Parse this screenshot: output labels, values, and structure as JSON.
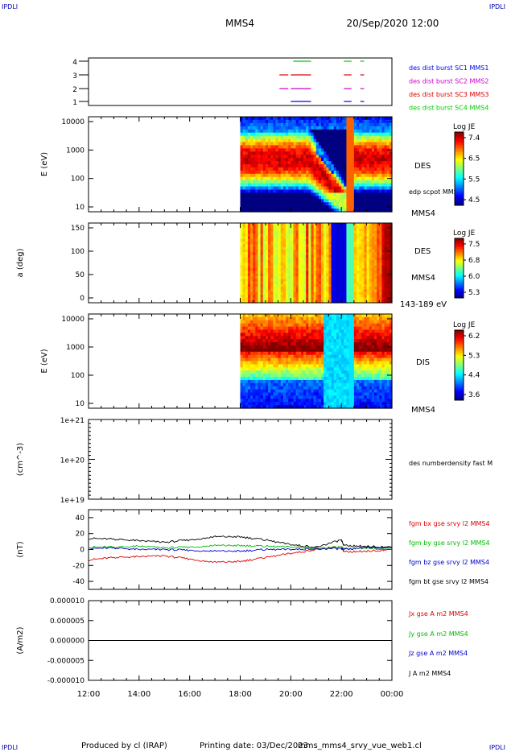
{
  "header": {
    "corner_labels": [
      "IPDLI",
      "IPDLI",
      "IPDLI",
      "IPDLI"
    ],
    "spacecraft": "MMS4",
    "datetime": "20/Sep/2020 12:00"
  },
  "footer": {
    "produced_by": "Produced by cl (IRAP)",
    "printing_date": "Printing date: 03/Dec/2023",
    "file": "mms_mms4_srvy_vue_web1.cl"
  },
  "x_axis": {
    "ticks": [
      "12:00",
      "14:00",
      "16:00",
      "18:00",
      "20:00",
      "22:00",
      "00:00"
    ],
    "range_hours": [
      12,
      24
    ]
  },
  "colors": {
    "mms1": "#0000ff",
    "mms2": "#cc00cc",
    "mms3": "#dd0000",
    "mms4": "#00cc00",
    "bx": "#dd0000",
    "by": "#00bb00",
    "bz": "#0000cc",
    "bt": "#000000"
  },
  "chart_data": [
    {
      "type": "availability",
      "ylabel": "",
      "yticks": [
        "4",
        "3",
        "2",
        "1"
      ],
      "legend": [
        {
          "label": "des dist burst SC1 MMS1",
          "color": "#0000ff"
        },
        {
          "label": "des dist burst SC2 MMS2",
          "color": "#cc00cc"
        },
        {
          "label": "des dist burst SC3 MMS3",
          "color": "#dd0000"
        },
        {
          "label": "des dist burst SC4 MMS4",
          "color": "#00cc00"
        }
      ],
      "series": [
        {
          "level": 4,
          "color": "#00cc00",
          "intervals": [
            [
              20.1,
              20.8
            ],
            [
              22.1,
              22.4
            ],
            [
              22.75,
              22.9
            ]
          ]
        },
        {
          "level": 3,
          "color": "#dd0000",
          "intervals": [
            [
              19.55,
              19.9
            ],
            [
              20.0,
              20.8
            ],
            [
              22.1,
              22.4
            ],
            [
              22.75,
              22.9
            ]
          ]
        },
        {
          "level": 2,
          "color": "#cc00cc",
          "intervals": [
            [
              19.55,
              19.9
            ],
            [
              20.0,
              20.8
            ],
            [
              22.1,
              22.4
            ],
            [
              22.75,
              22.9
            ]
          ]
        },
        {
          "level": 1,
          "color": "#0000ff",
          "intervals": [
            [
              20.0,
              20.8
            ],
            [
              22.1,
              22.4
            ],
            [
              22.75,
              22.9
            ]
          ]
        }
      ]
    },
    {
      "type": "heatmap",
      "ylabel": "E (eV)",
      "yticks": [
        "10000",
        "1000",
        "100",
        "10"
      ],
      "log_y": true,
      "right_labels": [
        "DES",
        "edp scpot MMS4",
        "MMS4"
      ],
      "colorbar": {
        "title": "Log JE",
        "ticks": [
          "7.4",
          "6.5",
          "5.5",
          "4.5"
        ],
        "min": 4.5,
        "max": 7.4
      },
      "data_start_hour": 18.0
    },
    {
      "type": "heatmap",
      "ylabel": "a (deg)",
      "yticks": [
        "150",
        "100",
        "50",
        "0"
      ],
      "right_labels": [
        "DES",
        "MMS4",
        "143-189 eV"
      ],
      "colorbar": {
        "title": "Log JE",
        "ticks": [
          "7.5",
          "6.8",
          "6.0",
          "5.3"
        ],
        "min": 5.3,
        "max": 7.5
      },
      "data_start_hour": 18.0
    },
    {
      "type": "heatmap",
      "ylabel": "E (eV)",
      "yticks": [
        "10000",
        "1000",
        "100",
        "10"
      ],
      "log_y": true,
      "right_labels": [
        "DIS",
        "MMS4"
      ],
      "colorbar": {
        "title": "Log JE",
        "ticks": [
          "6.2",
          "5.3",
          "4.4",
          "3.6"
        ],
        "min": 3.6,
        "max": 6.2
      },
      "data_start_hour": 18.0
    },
    {
      "type": "line",
      "ylabel": "(cm^-3)",
      "yticks": [
        "1e+21",
        "1e+20",
        "1e+19"
      ],
      "log_y": true,
      "legend": [
        {
          "label": "des numberdensity fast M",
          "color": "#000000"
        }
      ],
      "series": []
    },
    {
      "type": "line",
      "ylabel": "(nT)",
      "yticks": [
        "40",
        "20",
        "0",
        "-20",
        "-40"
      ],
      "ylim": [
        -50,
        50
      ],
      "legend": [
        {
          "label": "fgm bx gse srvy l2 MMS4",
          "color": "#dd0000"
        },
        {
          "label": "fgm by gse srvy l2 MMS4",
          "color": "#00bb00"
        },
        {
          "label": "fgm bz gse srvy l2 MMS4",
          "color": "#0000cc"
        },
        {
          "label": "fgm bt gse srvy l2 MMS4",
          "color": "#000000"
        }
      ],
      "series": [
        {
          "name": "bx",
          "color": "#dd0000",
          "x": [
            12.0,
            13.0,
            14.0,
            15.0,
            16.0,
            17.0,
            18.0,
            19.0,
            20.0,
            21.0,
            22.0,
            22.1,
            23.0,
            24.0
          ],
          "y": [
            -13,
            -10,
            -9,
            -8,
            -12,
            -16,
            -15,
            -10,
            -5,
            0,
            3,
            -3,
            -2,
            0
          ]
        },
        {
          "name": "by",
          "color": "#00bb00",
          "x": [
            12.0,
            13.0,
            14.0,
            15.0,
            16.0,
            17.0,
            18.0,
            19.0,
            20.0,
            21.0,
            22.0,
            22.1,
            23.0,
            24.0
          ],
          "y": [
            3,
            3,
            4,
            2,
            3,
            5,
            5,
            4,
            3,
            2,
            3,
            1,
            2,
            0
          ]
        },
        {
          "name": "bz",
          "color": "#0000cc",
          "x": [
            12.0,
            13.0,
            14.0,
            15.0,
            16.0,
            17.0,
            18.0,
            19.0,
            20.0,
            21.0,
            22.0,
            22.1,
            23.0,
            24.0
          ],
          "y": [
            1,
            2,
            0,
            0,
            -1,
            -2,
            -2,
            0,
            0,
            1,
            1,
            0,
            3,
            2
          ]
        },
        {
          "name": "bt",
          "color": "#000000",
          "x": [
            12.0,
            13.0,
            14.0,
            15.0,
            16.0,
            17.0,
            18.0,
            19.0,
            20.0,
            21.0,
            22.0,
            22.1,
            23.0,
            24.0
          ],
          "y": [
            14,
            13,
            11,
            9,
            12,
            16,
            16,
            12,
            6,
            3,
            12,
            5,
            4,
            3
          ]
        }
      ]
    },
    {
      "type": "line",
      "ylabel": "(A/m2)",
      "yticks": [
        "0.000010",
        "0.000005",
        "0.000000",
        "-0.000005",
        "-0.000010"
      ],
      "ylim": [
        -1e-05,
        1e-05
      ],
      "legend": [
        {
          "label": "Jx gse A m2 MMS4",
          "color": "#dd0000"
        },
        {
          "label": "Jy gse A m2 MMS4",
          "color": "#00bb00"
        },
        {
          "label": "Jz gse A m2 MMS4",
          "color": "#0000cc"
        },
        {
          "label": "J A m2 MMS4",
          "color": "#000000"
        }
      ],
      "series": [
        {
          "name": "J",
          "color": "#000000",
          "x": [
            12.0,
            24.0
          ],
          "y": [
            0,
            0
          ]
        }
      ]
    }
  ]
}
